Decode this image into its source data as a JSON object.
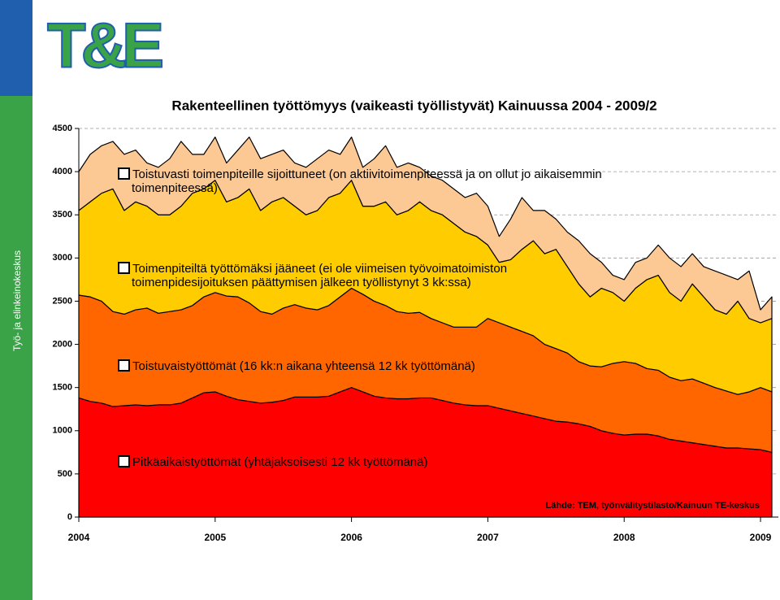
{
  "sidebar_text": "Työ- ja elinkeinokeskus",
  "logo_text": "T&E",
  "chart_data": {
    "type": "stacked_area",
    "title": "Rakenteellinen työttömyys (vaikeasti työllistyvät) Kainuussa 2004 - 2009/2",
    "source": "Lähde: TEM, työnvälitystilasto/Kainuun TE-keskus",
    "categories": [
      "2004",
      null,
      null,
      null,
      null,
      null,
      null,
      null,
      null,
      null,
      null,
      null,
      "2005",
      null,
      null,
      null,
      null,
      null,
      null,
      null,
      null,
      null,
      null,
      null,
      "2006",
      null,
      null,
      null,
      null,
      null,
      null,
      null,
      null,
      null,
      null,
      null,
      "2007",
      null,
      null,
      null,
      null,
      null,
      null,
      null,
      null,
      null,
      null,
      null,
      "2008",
      null,
      null,
      null,
      null,
      null,
      null,
      null,
      null,
      null,
      null,
      null,
      "2009",
      null
    ],
    "ylim": [
      0,
      4500
    ],
    "yticks": [
      0,
      500,
      1000,
      1500,
      2000,
      2500,
      3000,
      3500,
      4000,
      4500
    ],
    "grid": true,
    "series": [
      {
        "name": "Pitkäaikaistyöttömät (yhtäjaksoisesti 12 kk työttömänä)",
        "color": "#ff0000",
        "values": [
          1380,
          1340,
          1320,
          1280,
          1290,
          1300,
          1290,
          1300,
          1300,
          1320,
          1380,
          1440,
          1450,
          1400,
          1360,
          1340,
          1320,
          1330,
          1350,
          1390,
          1390,
          1390,
          1400,
          1450,
          1500,
          1450,
          1400,
          1380,
          1370,
          1370,
          1380,
          1380,
          1350,
          1320,
          1300,
          1290,
          1290,
          1260,
          1230,
          1200,
          1170,
          1140,
          1110,
          1100,
          1080,
          1050,
          1000,
          970,
          950,
          960,
          960,
          940,
          900,
          880,
          860,
          840,
          820,
          800,
          800,
          790,
          780,
          750
        ]
      },
      {
        "name": "Toistuvaistyöttömät (16 kk:n aikana yhteensä 12 kk työttömänä)",
        "color": "#ff6600",
        "values": [
          1190,
          1210,
          1180,
          1100,
          1060,
          1100,
          1130,
          1060,
          1080,
          1080,
          1070,
          1110,
          1150,
          1160,
          1190,
          1140,
          1060,
          1020,
          1070,
          1070,
          1030,
          1010,
          1050,
          1100,
          1150,
          1130,
          1100,
          1070,
          1010,
          990,
          990,
          920,
          900,
          880,
          900,
          910,
          1010,
          990,
          970,
          950,
          930,
          860,
          840,
          800,
          720,
          700,
          740,
          810,
          850,
          820,
          760,
          760,
          720,
          700,
          740,
          710,
          680,
          660,
          620,
          660,
          720,
          700
        ]
      },
      {
        "name": "Toimenpiteiltä työttömäksi jääneet (ei ole viimeisen työvoimatoimiston toimenpidesijoituksen päättymisen jälkeen työllistynyt 3 kk:ssa)",
        "color": "#ffcc00",
        "values": [
          980,
          1100,
          1250,
          1420,
          1200,
          1250,
          1180,
          1140,
          1120,
          1200,
          1300,
          1250,
          1300,
          1090,
          1150,
          1320,
          1170,
          1300,
          1280,
          1140,
          1080,
          1150,
          1250,
          1200,
          1250,
          1020,
          1100,
          1200,
          1120,
          1190,
          1280,
          1250,
          1250,
          1200,
          1100,
          1050,
          850,
          700,
          780,
          950,
          1100,
          1050,
          1150,
          1000,
          900,
          800,
          910,
          820,
          700,
          870,
          1030,
          1100,
          980,
          920,
          1100,
          1000,
          900,
          890,
          1080,
          850,
          750,
          850
        ]
      },
      {
        "name": "Toistuvasti toimenpiteille sijoittuneet (on aktiivitoimenpiteessä ja on ollut jo aikaisemmin toimenpiteessä)",
        "color": "#fcc995",
        "values": [
          450,
          550,
          550,
          550,
          650,
          600,
          500,
          550,
          650,
          750,
          450,
          400,
          500,
          450,
          550,
          600,
          600,
          550,
          550,
          500,
          550,
          600,
          550,
          450,
          500,
          450,
          550,
          650,
          550,
          550,
          400,
          400,
          400,
          400,
          400,
          500,
          450,
          300,
          470,
          600,
          350,
          500,
          350,
          400,
          500,
          500,
          300,
          200,
          250,
          300,
          250,
          350,
          400,
          400,
          350,
          350,
          450,
          450,
          250,
          550,
          150,
          250
        ]
      }
    ]
  }
}
